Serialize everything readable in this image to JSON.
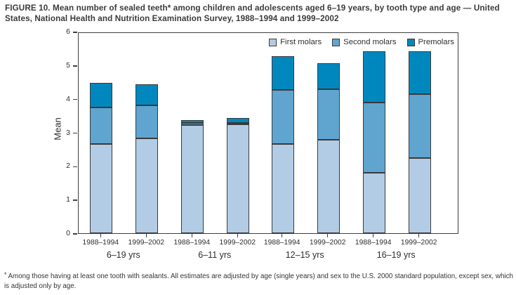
{
  "figure": {
    "title": "FIGURE 10. Mean number of sealed teeth* among children and adolescents aged 6–19 years, by tooth type and age — United States, National Health and Nutrition Examination Survey, 1988–1994 and 1999–2002",
    "footnote_marker": "*",
    "footnote": "Among those having at least one tooth with sealants. All estimates are adjusted by age (single years) and sex to the U.S. 2000 standard population, except sex, which is adjusted only by age."
  },
  "chart_data": {
    "type": "bar",
    "stacked": true,
    "ylabel": "Mean",
    "ylim": [
      0,
      6
    ],
    "yticks": [
      0,
      1,
      2,
      3,
      4,
      5,
      6
    ],
    "grid": false,
    "legend_position": "top-right-inside",
    "groups": [
      "6–19 yrs",
      "6–11 yrs",
      "12–15 yrs",
      "16–19 yrs"
    ],
    "bar_labels": [
      "1988–1994",
      "1999–2002",
      "1988–1994",
      "1999–2002",
      "1988–1994",
      "1999–2002",
      "1988–1994",
      "1999–2002"
    ],
    "series": [
      {
        "name": "First molars",
        "color": "#b3cce5",
        "values": [
          2.65,
          2.82,
          3.22,
          3.25,
          2.65,
          2.78,
          1.8,
          2.23
        ]
      },
      {
        "name": "Second molars",
        "color": "#5fa5cf",
        "values": [
          1.1,
          0.98,
          0.07,
          0.03,
          1.62,
          1.5,
          2.09,
          1.9
        ]
      },
      {
        "name": "Premolars",
        "color": "#0088be",
        "values": [
          0.73,
          0.64,
          0.07,
          0.14,
          1.0,
          0.77,
          1.52,
          1.29
        ]
      }
    ],
    "totals": [
      4.48,
      4.44,
      3.36,
      3.42,
      5.27,
      5.05,
      5.41,
      5.42
    ]
  }
}
